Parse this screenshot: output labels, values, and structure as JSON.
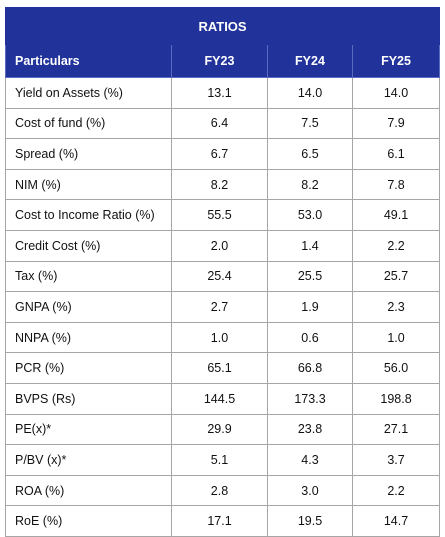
{
  "title": "RATIOS",
  "columns": [
    "Particulars",
    "FY23",
    "FY24",
    "FY25"
  ],
  "rows": [
    {
      "label": "Yield on Assets (%)",
      "values": [
        "13.1",
        "14.0",
        "14.0"
      ]
    },
    {
      "label": "Cost of fund (%)",
      "values": [
        "6.4",
        "7.5",
        "7.9"
      ]
    },
    {
      "label": "Spread (%)",
      "values": [
        "6.7",
        "6.5",
        "6.1"
      ]
    },
    {
      "label": "NIM (%)",
      "values": [
        "8.2",
        "8.2",
        "7.8"
      ]
    },
    {
      "label": "Cost to Income Ratio (%)",
      "values": [
        "55.5",
        "53.0",
        "49.1"
      ]
    },
    {
      "label": "Credit Cost (%)",
      "values": [
        "2.0",
        "1.4",
        "2.2"
      ]
    },
    {
      "label": "Tax (%)",
      "values": [
        "25.4",
        "25.5",
        "25.7"
      ]
    },
    {
      "label": "GNPA (%)",
      "values": [
        "2.7",
        "1.9",
        "2.3"
      ]
    },
    {
      "label": "NNPA (%)",
      "values": [
        "1.0",
        "0.6",
        "1.0"
      ]
    },
    {
      "label": "PCR (%)",
      "values": [
        "65.1",
        "66.8",
        "56.0"
      ]
    },
    {
      "label": "BVPS (Rs)",
      "values": [
        "144.5",
        "173.3",
        "198.8"
      ]
    },
    {
      "label": "PE(x)*",
      "values": [
        "29.9",
        "23.8",
        "27.1"
      ]
    },
    {
      "label": "P/BV (x)*",
      "values": [
        "5.1",
        "4.3",
        "3.7"
      ]
    },
    {
      "label": "ROA (%)",
      "values": [
        "2.8",
        "3.0",
        "2.2"
      ]
    },
    {
      "label": "RoE (%)",
      "values": [
        "17.1",
        "19.5",
        "14.7"
      ]
    }
  ],
  "colors": {
    "header_bg": "#21339a",
    "header_text": "#ffffff",
    "grid": "#a6a6a6"
  }
}
